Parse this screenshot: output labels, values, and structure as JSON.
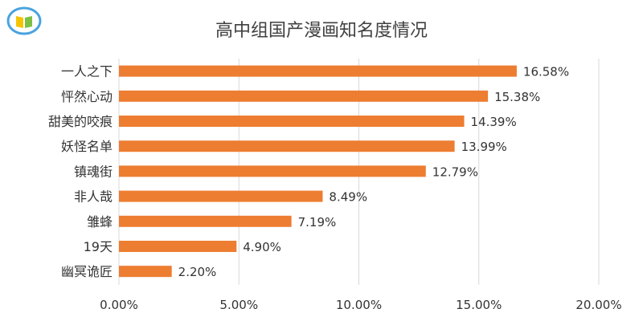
{
  "chart_data": {
    "type": "bar",
    "orientation": "horizontal",
    "title": "高中组国产漫画知名度情况",
    "categories": [
      "一人之下",
      "怦然心动",
      "甜美的咬痕",
      "妖怪名单",
      "镇魂街",
      "非人哉",
      "雏蜂",
      "19天",
      "幽冥诡匠"
    ],
    "values": [
      16.58,
      15.38,
      14.39,
      13.99,
      12.79,
      8.49,
      7.19,
      4.9,
      2.2
    ],
    "value_labels": [
      "16.58%",
      "15.38%",
      "14.39%",
      "13.99%",
      "12.79%",
      "8.49%",
      "7.19%",
      "4.90%",
      "2.20%"
    ],
    "xlim": [
      0,
      20
    ],
    "x_ticks": [
      0,
      5,
      10,
      15,
      20
    ],
    "x_tick_labels": [
      "0.00%",
      "5.00%",
      "10.00%",
      "15.00%",
      "20.00%"
    ],
    "grid": true,
    "bar_color": "#ED7D31",
    "grid_color": "#D9D9D9"
  }
}
